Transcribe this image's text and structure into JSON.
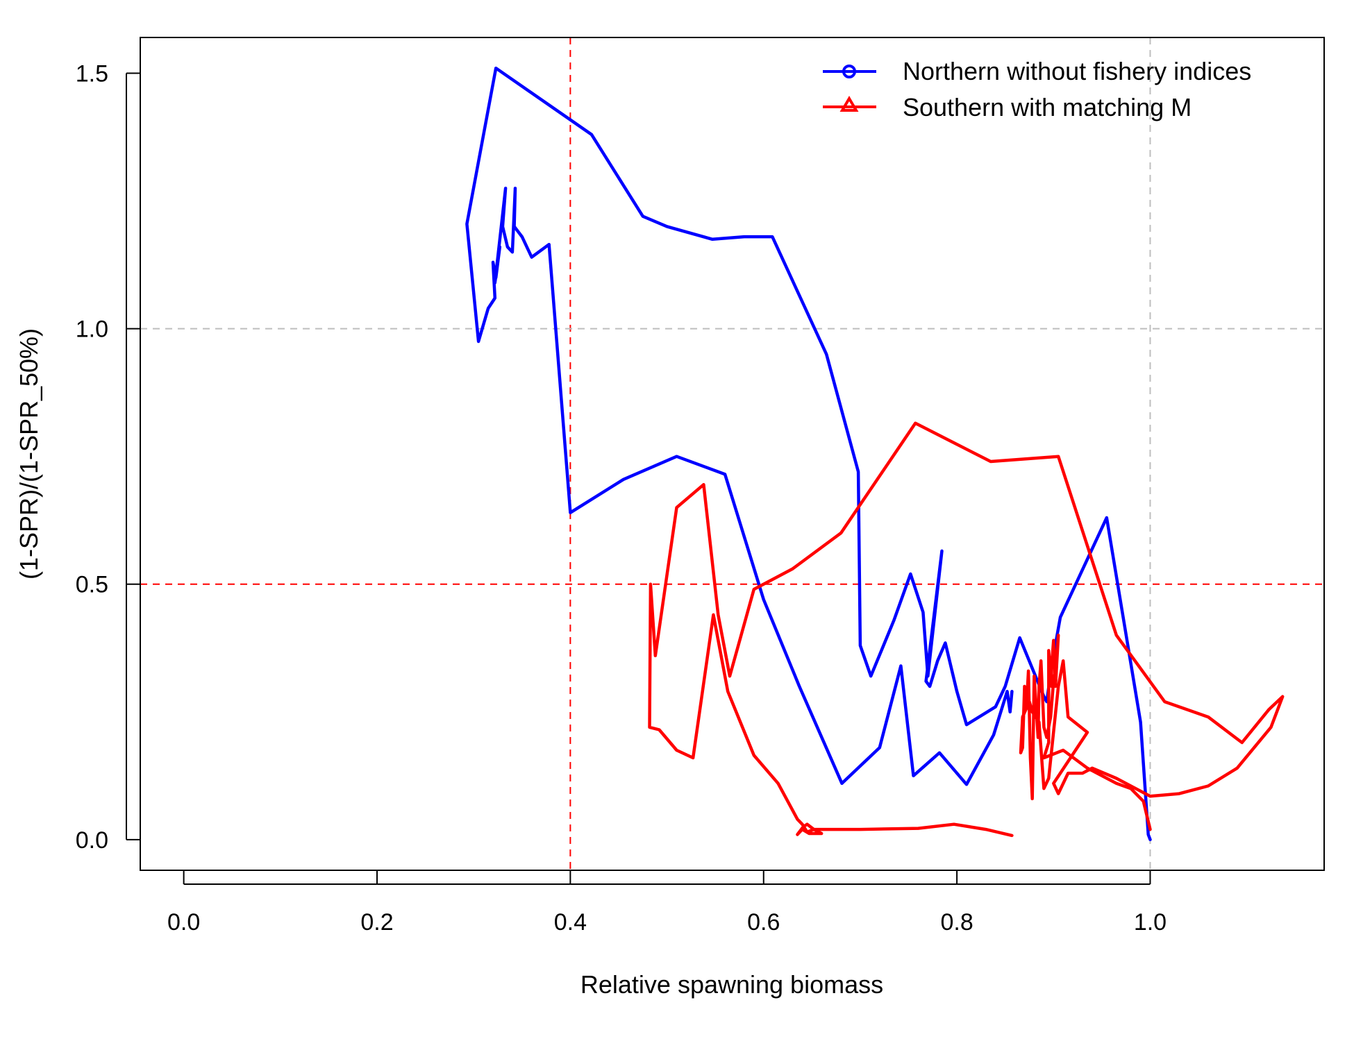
{
  "chart_data": {
    "type": "line",
    "xlabel": "Relative spawning biomass",
    "ylabel": "(1-SPR)/(1-SPR_50%)",
    "xlim": [
      -0.045,
      1.18
    ],
    "ylim": [
      -0.06,
      1.57
    ],
    "x_ticks": [
      "0.0",
      "0.2",
      "0.4",
      "0.6",
      "0.8",
      "1.0"
    ],
    "y_ticks": [
      "0.0",
      "0.5",
      "1.0",
      "1.5"
    ],
    "legend_position": "top-right",
    "reference_lines": [
      {
        "axis": "x",
        "value": 0.4,
        "color": "#ff0000",
        "style": "dashed"
      },
      {
        "axis": "x",
        "value": 1.0,
        "color": "#bebebe",
        "style": "dashed"
      },
      {
        "axis": "y",
        "value": 0.5,
        "color": "#ff0000",
        "style": "dashed"
      },
      {
        "axis": "y",
        "value": 1.0,
        "color": "#bebebe",
        "style": "dashed"
      }
    ],
    "series": [
      {
        "name": "Northern without fishery indices",
        "color": "#0000ff",
        "marker": "circle",
        "points": [
          [
            1.0,
            0.0
          ],
          [
            0.998,
            0.01
          ],
          [
            0.99,
            0.23
          ],
          [
            0.955,
            0.63
          ],
          [
            0.907,
            0.435
          ],
          [
            0.898,
            0.34
          ],
          [
            0.893,
            0.27
          ],
          [
            0.89,
            0.28
          ],
          [
            0.865,
            0.395
          ],
          [
            0.85,
            0.3
          ],
          [
            0.84,
            0.26
          ],
          [
            0.81,
            0.225
          ],
          [
            0.8,
            0.29
          ],
          [
            0.788,
            0.385
          ],
          [
            0.78,
            0.35
          ],
          [
            0.772,
            0.3
          ],
          [
            0.768,
            0.31
          ],
          [
            0.7845,
            0.565
          ],
          [
            0.77,
            0.32
          ],
          [
            0.765,
            0.445
          ],
          [
            0.752,
            0.52
          ],
          [
            0.735,
            0.43
          ],
          [
            0.711,
            0.32
          ],
          [
            0.7,
            0.38
          ],
          [
            0.698,
            0.72
          ],
          [
            0.665,
            0.95
          ],
          [
            0.609,
            1.18
          ],
          [
            0.58,
            1.18
          ],
          [
            0.547,
            1.175
          ],
          [
            0.5,
            1.2
          ],
          [
            0.475,
            1.22
          ],
          [
            0.422,
            1.38
          ],
          [
            0.323,
            1.51
          ],
          [
            0.293,
            1.205
          ],
          [
            0.305,
            0.975
          ],
          [
            0.315,
            1.04
          ],
          [
            0.322,
            1.06
          ],
          [
            0.32,
            1.13
          ],
          [
            0.323,
            1.1
          ],
          [
            0.327,
            1.16
          ],
          [
            0.322,
            1.09
          ],
          [
            0.333,
            1.275
          ],
          [
            0.33,
            1.2
          ],
          [
            0.335,
            1.16
          ],
          [
            0.34,
            1.15
          ],
          [
            0.343,
            1.275
          ],
          [
            0.342,
            1.2
          ],
          [
            0.35,
            1.18
          ],
          [
            0.36,
            1.14
          ],
          [
            0.378,
            1.165
          ],
          [
            0.4,
            0.64
          ],
          [
            0.455,
            0.705
          ],
          [
            0.51,
            0.75
          ],
          [
            0.56,
            0.715
          ],
          [
            0.6,
            0.47
          ],
          [
            0.637,
            0.3
          ],
          [
            0.681,
            0.11
          ],
          [
            0.72,
            0.18
          ],
          [
            0.742,
            0.34
          ],
          [
            0.755,
            0.125
          ],
          [
            0.782,
            0.17
          ],
          [
            0.81,
            0.108
          ],
          [
            0.838,
            0.205
          ],
          [
            0.852,
            0.29
          ],
          [
            0.855,
            0.25
          ],
          [
            0.857,
            0.29
          ]
        ]
      },
      {
        "name": "Southern with matching M",
        "color": "#ff0000",
        "marker": "triangle",
        "points": [
          [
            1.0,
            0.02
          ],
          [
            0.993,
            0.075
          ],
          [
            0.98,
            0.1
          ],
          [
            0.965,
            0.11
          ],
          [
            0.935,
            0.14
          ],
          [
            0.91,
            0.175
          ],
          [
            0.89,
            0.16
          ],
          [
            0.895,
            0.19
          ],
          [
            0.895,
            0.37
          ],
          [
            0.898,
            0.3
          ],
          [
            0.898,
            0.34
          ],
          [
            0.9,
            0.39
          ],
          [
            0.902,
            0.3
          ],
          [
            0.905,
            0.4
          ],
          [
            0.902,
            0.33
          ],
          [
            0.9,
            0.31
          ],
          [
            0.897,
            0.24
          ],
          [
            0.893,
            0.2
          ],
          [
            0.89,
            0.22
          ],
          [
            0.887,
            0.35
          ],
          [
            0.885,
            0.3
          ],
          [
            0.884,
            0.2
          ],
          [
            0.88,
            0.32
          ],
          [
            0.878,
            0.08
          ],
          [
            0.876,
            0.16
          ],
          [
            0.874,
            0.33
          ],
          [
            0.872,
            0.26
          ],
          [
            0.87,
            0.3
          ],
          [
            0.868,
            0.18
          ],
          [
            0.866,
            0.17
          ],
          [
            0.868,
            0.24
          ],
          [
            0.875,
            0.27
          ],
          [
            0.878,
            0.25
          ],
          [
            0.885,
            0.23
          ],
          [
            0.89,
            0.1
          ],
          [
            0.895,
            0.12
          ],
          [
            0.905,
            0.3
          ],
          [
            0.91,
            0.35
          ],
          [
            0.915,
            0.24
          ],
          [
            0.935,
            0.21
          ],
          [
            0.9,
            0.11
          ],
          [
            0.905,
            0.09
          ],
          [
            0.915,
            0.13
          ],
          [
            0.93,
            0.13
          ],
          [
            0.94,
            0.14
          ],
          [
            0.965,
            0.12
          ],
          [
            1.0,
            0.085
          ],
          [
            1.03,
            0.09
          ],
          [
            1.06,
            0.105
          ],
          [
            1.09,
            0.14
          ],
          [
            1.125,
            0.22
          ],
          [
            1.137,
            0.28
          ],
          [
            1.123,
            0.255
          ],
          [
            1.095,
            0.19
          ],
          [
            1.06,
            0.24
          ],
          [
            1.015,
            0.27
          ],
          [
            0.965,
            0.4
          ],
          [
            0.905,
            0.75
          ],
          [
            0.835,
            0.74
          ],
          [
            0.757,
            0.815
          ],
          [
            0.68,
            0.6
          ],
          [
            0.63,
            0.53
          ],
          [
            0.59,
            0.49
          ],
          [
            0.565,
            0.32
          ],
          [
            0.553,
            0.44
          ],
          [
            0.538,
            0.695
          ],
          [
            0.51,
            0.65
          ],
          [
            0.488,
            0.36
          ],
          [
            0.483,
            0.5
          ],
          [
            0.482,
            0.22
          ],
          [
            0.492,
            0.215
          ],
          [
            0.51,
            0.175
          ],
          [
            0.527,
            0.16
          ],
          [
            0.548,
            0.44
          ],
          [
            0.563,
            0.29
          ],
          [
            0.59,
            0.165
          ],
          [
            0.615,
            0.11
          ],
          [
            0.635,
            0.04
          ],
          [
            0.64,
            0.03
          ],
          [
            0.645,
            0.015
          ],
          [
            0.652,
            0.02
          ],
          [
            0.645,
            0.03
          ],
          [
            0.641,
            0.025
          ],
          [
            0.635,
            0.01
          ],
          [
            0.64,
            0.02
          ],
          [
            0.647,
            0.012
          ],
          [
            0.66,
            0.012
          ],
          [
            0.652,
            0.02
          ],
          [
            0.666,
            0.02
          ],
          [
            0.7,
            0.02
          ],
          [
            0.76,
            0.022
          ],
          [
            0.797,
            0.03
          ],
          [
            0.83,
            0.02
          ],
          [
            0.857,
            0.008
          ]
        ]
      }
    ]
  }
}
